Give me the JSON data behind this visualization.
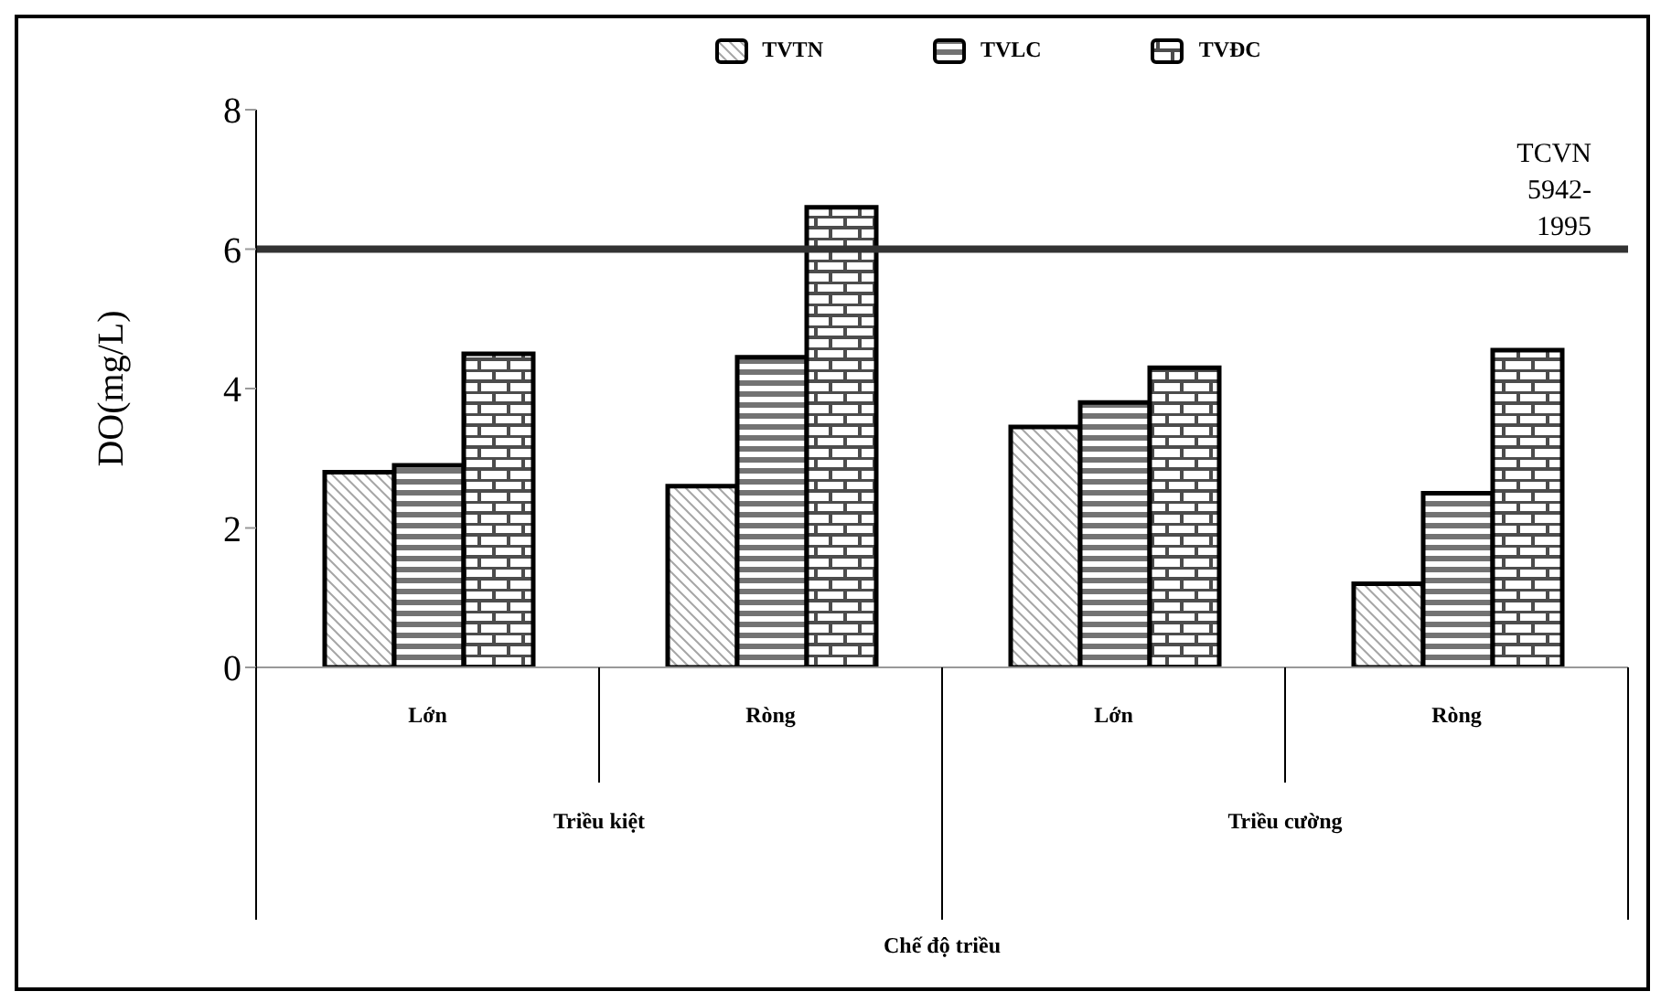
{
  "chart_data": {
    "type": "bar",
    "ylabel": "DO(mg/L)",
    "categories": [
      "Lớn",
      "Ròng",
      "Lớn",
      "Ròng"
    ],
    "series": [
      {
        "name": "TVTN",
        "color": "#000000",
        "values": [
          2.8,
          2.6,
          3.45,
          1.2
        ]
      },
      {
        "name": "TVLC",
        "color": "#000000",
        "values": [
          2.9,
          4.45,
          3.8,
          2.5
        ]
      },
      {
        "name": "TVĐC",
        "color": "#000000",
        "values": [
          4.5,
          6.6,
          4.3,
          4.55
        ]
      }
    ],
    "annotations": [
      "Triều kiệt",
      "Triều cường",
      "Chế độ triều"
    ],
    "ref_lines": [
      {
        "axis": "y",
        "value": 6,
        "label": "TCVN 5942-1995",
        "color": "#333333"
      }
    ],
    "ylim": [
      0,
      8
    ],
    "yticks": [
      0,
      2,
      4,
      6,
      8
    ],
    "grid": false,
    "legend": "top"
  }
}
